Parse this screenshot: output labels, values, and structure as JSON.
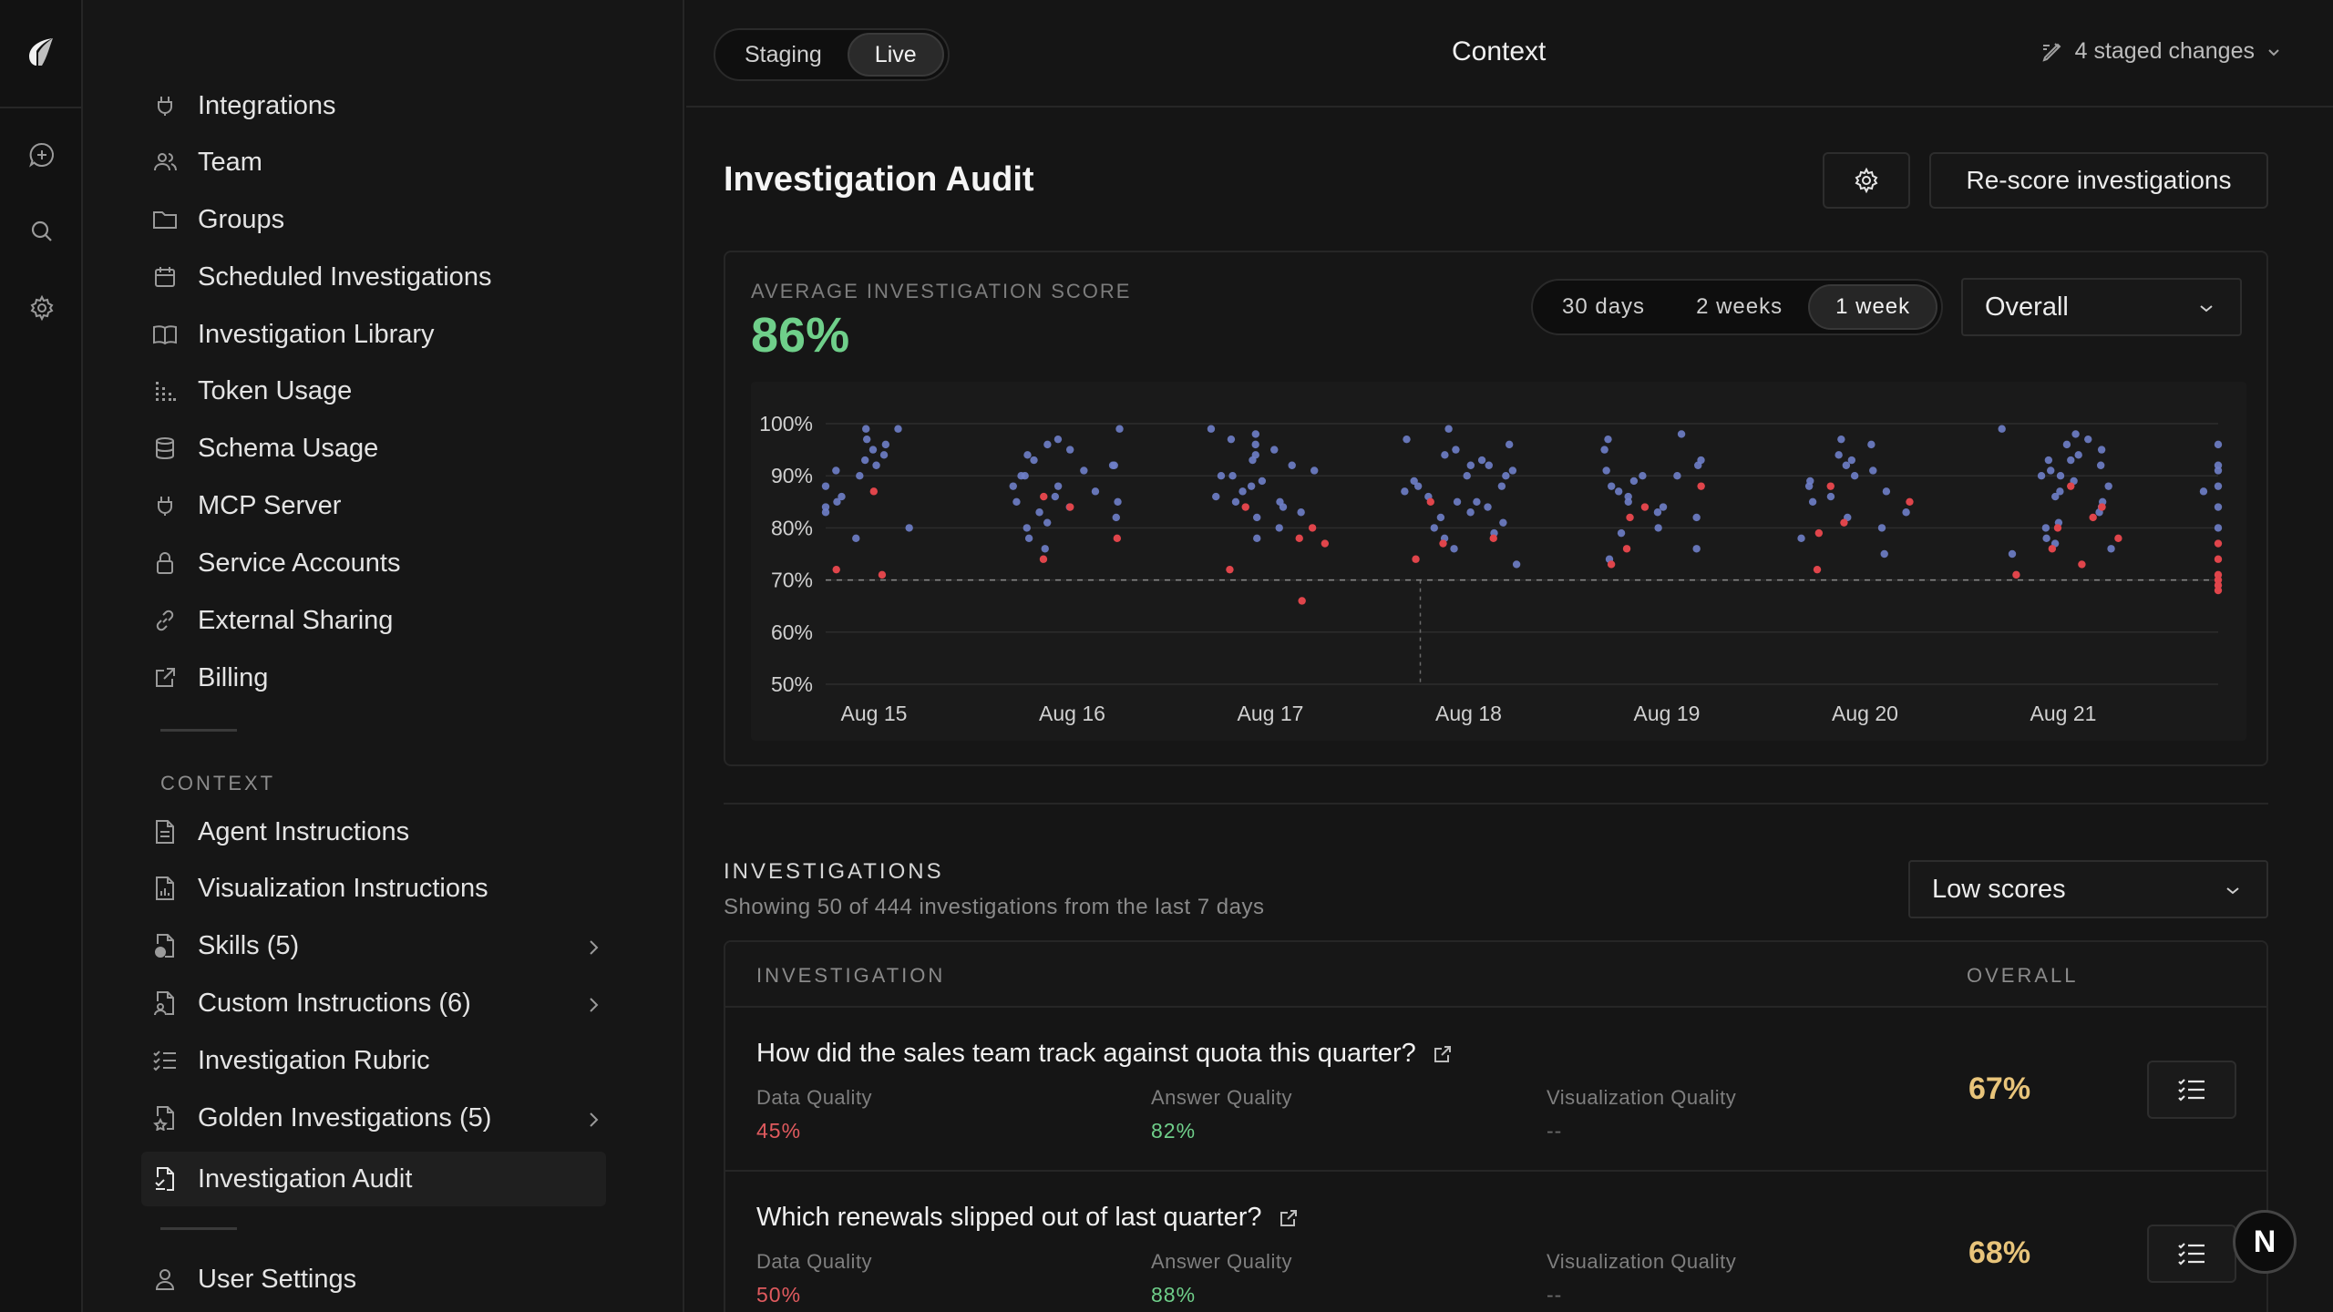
{
  "header": {
    "env_options": [
      "Staging",
      "Live"
    ],
    "env_selected": "Live",
    "title": "Context",
    "staged_changes": "4 staged changes"
  },
  "sidebar": {
    "items": [
      {
        "label": "Integrations",
        "icon": "plug-icon"
      },
      {
        "label": "Team",
        "icon": "users-icon"
      },
      {
        "label": "Groups",
        "icon": "folder-icon"
      },
      {
        "label": "Scheduled Investigations",
        "icon": "calendar-icon"
      },
      {
        "label": "Investigation Library",
        "icon": "book-icon"
      },
      {
        "label": "Token Usage",
        "icon": "bars-icon"
      },
      {
        "label": "Schema Usage",
        "icon": "database-icon"
      },
      {
        "label": "MCP Server",
        "icon": "plug-icon"
      },
      {
        "label": "Service Accounts",
        "icon": "lock-icon"
      },
      {
        "label": "External Sharing",
        "icon": "link-icon"
      },
      {
        "label": "Billing",
        "icon": "external-link-icon"
      }
    ],
    "context_section": "CONTEXT",
    "context_items": [
      {
        "label": "Agent Instructions",
        "icon": "document-icon",
        "chevron": false
      },
      {
        "label": "Visualization Instructions",
        "icon": "chart-document-icon",
        "chevron": false
      },
      {
        "label": "Skills (5)",
        "icon": "skills-icon",
        "chevron": true
      },
      {
        "label": "Custom Instructions (6)",
        "icon": "user-document-icon",
        "chevron": true
      },
      {
        "label": "Investigation Rubric",
        "icon": "checklist-icon",
        "chevron": false
      },
      {
        "label": "Golden Investigations (5)",
        "icon": "star-document-icon",
        "chevron": true
      },
      {
        "label": "Investigation Audit",
        "icon": "audit-document-icon",
        "chevron": false,
        "active": true
      }
    ],
    "footer_item": {
      "label": "User Settings",
      "icon": "user-icon"
    }
  },
  "page": {
    "title": "Investigation Audit",
    "rescore_label": "Re-score investigations"
  },
  "score_card": {
    "label": "AVERAGE INVESTIGATION SCORE",
    "value": "86%",
    "ranges": [
      "30 days",
      "2 weeks",
      "1 week"
    ],
    "range_selected": "1 week",
    "metric_select": "Overall"
  },
  "chart_data": {
    "type": "scatter",
    "y_ticks": [
      "100%",
      "90%",
      "80%",
      "70%",
      "60%",
      "50%"
    ],
    "x_ticks": [
      "Aug 15",
      "Aug 16",
      "Aug 17",
      "Aug 18",
      "Aug 19",
      "Aug 20",
      "Aug 21"
    ],
    "ylim": [
      50,
      100
    ],
    "threshold": 70,
    "colors": {
      "normal": "#6f7fc9",
      "low": "#e0454b"
    },
    "series": [
      {
        "day": 0,
        "normal": [
          93,
          95,
          88,
          85,
          90,
          97,
          84,
          80,
          92,
          78,
          86,
          99,
          94,
          83,
          99,
          91,
          96
        ],
        "low": [
          72,
          71,
          87
        ]
      },
      {
        "day": 1,
        "normal": [
          94,
          88,
          92,
          85,
          90,
          97,
          82,
          78,
          86,
          95,
          91,
          83,
          80,
          99,
          88,
          93,
          84,
          76,
          90,
          87,
          96,
          81,
          85,
          92
        ],
        "low": [
          86,
          78,
          84,
          74
        ]
      },
      {
        "day": 2,
        "normal": [
          95,
          88,
          92,
          85,
          90,
          97,
          82,
          86,
          99,
          93,
          84,
          80,
          91,
          87,
          96,
          89,
          94,
          83,
          78,
          98,
          85,
          90
        ],
        "low": [
          78,
          72,
          84,
          66,
          80,
          77
        ]
      },
      {
        "day": 3,
        "normal": [
          96,
          88,
          92,
          85,
          90,
          97,
          82,
          78,
          86,
          99,
          93,
          84,
          80,
          91,
          87,
          94,
          83,
          76,
          89,
          73,
          95,
          81,
          92,
          85,
          88,
          79,
          90
        ],
        "low": [
          77,
          74,
          85,
          78
        ]
      },
      {
        "day": 4,
        "normal": [
          98,
          90,
          93,
          86,
          82,
          79,
          91,
          88,
          95,
          84,
          76,
          92,
          87,
          80,
          97,
          89,
          83,
          74,
          90,
          85
        ],
        "low": [
          84,
          88,
          76,
          82,
          73
        ]
      },
      {
        "day": 5,
        "normal": [
          96,
          89,
          92,
          85,
          90,
          82,
          78,
          87,
          93,
          75,
          94,
          83,
          80,
          91,
          86,
          97,
          88
        ],
        "low": [
          85,
          79,
          72,
          88,
          81
        ]
      },
      {
        "day": 6,
        "normal": [
          99,
          96,
          93,
          90,
          87,
          84,
          81,
          78,
          75,
          92,
          89,
          86,
          95,
          98,
          91,
          88,
          83,
          80,
          77,
          94,
          97,
          85,
          90,
          76,
          93
        ],
        "low": [
          84,
          80,
          71,
          78,
          88,
          73,
          76,
          82
        ]
      },
      {
        "day": 7,
        "normal": [
          92,
          88,
          84,
          96,
          91,
          87,
          80
        ],
        "low": [
          68,
          71,
          74,
          77,
          70,
          69
        ]
      }
    ]
  },
  "investigations": {
    "heading": "INVESTIGATIONS",
    "subtitle": "Showing 50 of 444 investigations from the last 7 days",
    "filter": "Low scores",
    "col_investigation": "INVESTIGATION",
    "col_overall": "OVERALL",
    "rows": [
      {
        "question": "How did the sales team track against quota this quarter?",
        "data_quality_label": "Data Quality",
        "data_quality": "45%",
        "answer_quality_label": "Answer Quality",
        "answer_quality": "82%",
        "viz_quality_label": "Visualization Quality",
        "viz_quality": "--",
        "overall": "67%"
      },
      {
        "question": "Which renewals slipped out of last quarter?",
        "data_quality_label": "Data Quality",
        "data_quality": "50%",
        "answer_quality_label": "Answer Quality",
        "answer_quality": "88%",
        "viz_quality_label": "Visualization Quality",
        "viz_quality": "--",
        "overall": "68%"
      }
    ]
  },
  "fab_label": "N"
}
